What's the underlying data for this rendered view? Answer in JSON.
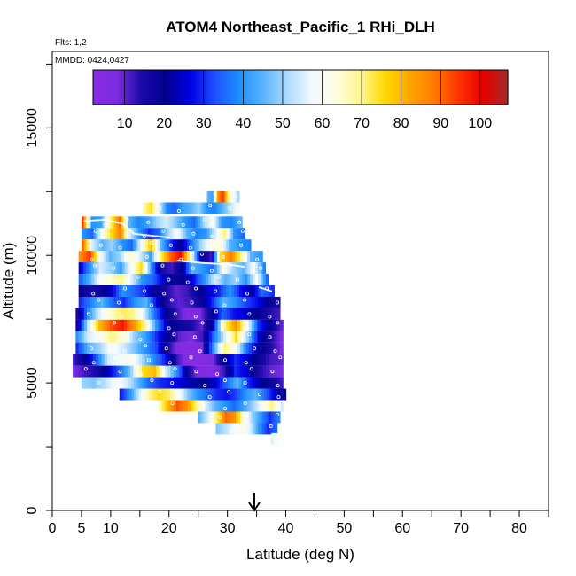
{
  "chart_data": {
    "type": "heatmap",
    "title": "ATOM4 Northeast_Pacific_1 RHi_DLH",
    "flights_label": "Flts: 1,2",
    "dates_label": "MMDD: 0424,0427",
    "xlabel": "Latitude (deg N)",
    "ylabel": "Altitude (m)",
    "xlim": [
      0,
      85
    ],
    "ylim": [
      0,
      18000
    ],
    "x_tick_labels": [
      "0",
      "5",
      "10",
      "20",
      "30",
      "40",
      "50",
      "60",
      "70",
      "80"
    ],
    "y_tick_labels": [
      "0",
      "5000",
      "10000",
      "15000"
    ],
    "grid": false,
    "colorbar": {
      "range": [
        2,
        107
      ],
      "tick_labels": [
        "10",
        "20",
        "30",
        "40",
        "50",
        "60",
        "70",
        "80",
        "90",
        "100"
      ],
      "colors": [
        "#8a2be2",
        "#7a2be2",
        "#1a0aa8",
        "#000090",
        "#0000e6",
        "#2050ff",
        "#1e90ff",
        "#5bb4ff",
        "#b0dcff",
        "#f2faff",
        "#fffde0",
        "#fff68a",
        "#ffd700",
        "#ffa500",
        "#ff7a00",
        "#ff3300",
        "#e60000",
        "#a52a2a"
      ]
    },
    "marker": {
      "x": 34.6,
      "label": "↓"
    },
    "strips": [
      {
        "alt": 12300,
        "x0": 26.5,
        "x1": 32.0,
        "values": [
          45,
          42,
          85,
          95,
          70,
          60,
          50
        ]
      },
      {
        "alt": 11850,
        "x0": 15.5,
        "x1": 32.0,
        "values": [
          68,
          75,
          55,
          38,
          35,
          42,
          45,
          50,
          40,
          38,
          45,
          52,
          60
        ]
      },
      {
        "alt": 11300,
        "x0": 5.0,
        "x1": 32.5,
        "values": [
          95,
          40,
          42,
          70,
          90,
          45,
          38,
          42,
          50,
          55,
          48,
          40,
          35,
          50,
          60,
          40,
          38,
          45
        ]
      },
      {
        "alt": 10850,
        "x0": 5.0,
        "x1": 33.0,
        "values": [
          40,
          35,
          60,
          75,
          88,
          55,
          40,
          30,
          35,
          50,
          60,
          45,
          38,
          40,
          55,
          70,
          40,
          35
        ]
      },
      {
        "alt": 10400,
        "x0": 5.0,
        "x1": 34.0,
        "values": [
          90,
          55,
          45,
          50,
          40,
          35,
          60,
          80,
          45,
          30,
          20,
          35,
          50,
          60,
          65,
          45,
          40,
          38
        ]
      },
      {
        "alt": 9950,
        "x0": 4.5,
        "x1": 36.0,
        "values": [
          85,
          95,
          60,
          45,
          50,
          65,
          55,
          42,
          70,
          90,
          100,
          65,
          20,
          12,
          75,
          88,
          70,
          45,
          40
        ]
      },
      {
        "alt": 9500,
        "x0": 4.5,
        "x1": 36.5,
        "values": [
          25,
          40,
          55,
          50,
          42,
          60,
          75,
          40,
          15,
          12,
          20,
          45,
          40,
          35,
          60,
          50,
          45,
          60,
          38
        ]
      },
      {
        "alt": 9050,
        "x0": 4.5,
        "x1": 37.0,
        "values": [
          35,
          45,
          60,
          65,
          70,
          55,
          40,
          35,
          25,
          18,
          20,
          28,
          40,
          55,
          45,
          50,
          40,
          60,
          35
        ]
      },
      {
        "alt": 8600,
        "x0": 4.5,
        "x1": 38.0,
        "values": [
          20,
          15,
          18,
          25,
          40,
          35,
          30,
          20,
          15,
          10,
          12,
          18,
          25,
          30,
          40,
          28,
          22,
          35,
          30
        ]
      },
      {
        "alt": 8150,
        "x0": 4.5,
        "x1": 39.0,
        "values": [
          30,
          38,
          45,
          35,
          30,
          40,
          45,
          25,
          14,
          10,
          12,
          18,
          30,
          45,
          40,
          32,
          28,
          20,
          15
        ]
      },
      {
        "alt": 7700,
        "x0": 4.0,
        "x1": 39.0,
        "values": [
          15,
          40,
          55,
          65,
          72,
          70,
          55,
          35,
          20,
          12,
          5,
          8,
          18,
          35,
          28,
          25,
          20,
          15,
          12
        ]
      },
      {
        "alt": 7250,
        "x0": 4.0,
        "x1": 39.5,
        "values": [
          18,
          55,
          80,
          92,
          98,
          85,
          68,
          40,
          22,
          18,
          15,
          10,
          25,
          70,
          85,
          60,
          30,
          20,
          10
        ]
      },
      {
        "alt": 6800,
        "x0": 4.0,
        "x1": 39.5,
        "values": [
          40,
          55,
          60,
          70,
          65,
          50,
          42,
          30,
          20,
          10,
          8,
          12,
          35,
          55,
          75,
          50,
          25,
          15,
          8
        ]
      },
      {
        "alt": 6350,
        "x0": 4.0,
        "x1": 39.5,
        "values": [
          30,
          45,
          50,
          60,
          55,
          48,
          40,
          32,
          15,
          5,
          4,
          8,
          40,
          70,
          60,
          35,
          22,
          15,
          8
        ]
      },
      {
        "alt": 5900,
        "x0": 3.5,
        "x1": 39.5,
        "values": [
          12,
          20,
          35,
          55,
          58,
          62,
          50,
          38,
          28,
          12,
          4,
          4,
          8,
          20,
          30,
          25,
          18,
          12,
          10
        ]
      },
      {
        "alt": 5450,
        "x0": 3.5,
        "x1": 39.5,
        "values": [
          8,
          12,
          15,
          25,
          35,
          50,
          75,
          80,
          55,
          38,
          15,
          5,
          5,
          12,
          30,
          25,
          15,
          10,
          8
        ]
      },
      {
        "alt": 5000,
        "x0": 5.0,
        "x1": 39.5,
        "values": [
          50,
          48,
          52,
          60,
          55,
          45,
          35,
          30,
          28,
          25,
          22,
          20,
          25,
          35,
          45,
          30,
          22,
          18,
          12
        ]
      },
      {
        "alt": 4550,
        "x0": 11.5,
        "x1": 40.0,
        "values": [
          28,
          40,
          55,
          70,
          75,
          72,
          60,
          48,
          40,
          35,
          30,
          28,
          32,
          40,
          45,
          35,
          25,
          20
        ]
      },
      {
        "alt": 4100,
        "x0": 18.0,
        "x1": 39.5,
        "values": [
          65,
          80,
          92,
          85,
          70,
          55,
          45,
          40,
          35,
          42,
          50,
          60,
          70,
          55
        ]
      },
      {
        "alt": 3650,
        "x0": 25.0,
        "x1": 39.0,
        "values": [
          45,
          55,
          72,
          90,
          85,
          65,
          50,
          40,
          30,
          38
        ]
      },
      {
        "alt": 3200,
        "x0": 28.0,
        "x1": 38.5,
        "values": [
          48,
          52,
          58,
          62,
          55,
          40,
          30,
          35
        ]
      },
      {
        "alt": 2800,
        "x0": 37.5,
        "x1": 38.5,
        "values": [
          55,
          60
        ]
      }
    ]
  }
}
